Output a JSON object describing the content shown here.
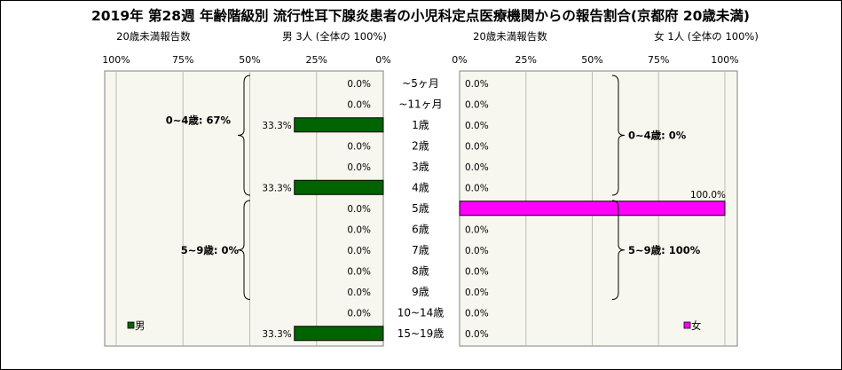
{
  "chart_data": [
    {
      "type": "bar",
      "title": "2019年 第28週 年齢階級別 流行性耳下腺炎患者の小児科定点医療機関からの報告割合(京都府 20歳未満)",
      "panel": "left",
      "orientation": "horizontal",
      "direction": "right-to-left",
      "header_left": "20歳未満報告数",
      "header_right": "男 3人 (全体の 100%)",
      "categories": [
        "~5ヶ月",
        "~11ヶ月",
        "1歳",
        "2歳",
        "3歳",
        "4歳",
        "5歳",
        "6歳",
        "7歳",
        "8歳",
        "9歳",
        "10~14歳",
        "15~19歳"
      ],
      "series": [
        {
          "name": "男",
          "color": "#006400",
          "values": [
            0.0,
            0.0,
            33.3,
            0.0,
            0.0,
            33.3,
            0.0,
            0.0,
            0.0,
            0.0,
            0.0,
            0.0,
            33.3
          ]
        }
      ],
      "value_labels": [
        "0.0%",
        "0.0%",
        "33.3%",
        "0.0%",
        "0.0%",
        "33.3%",
        "0.0%",
        "0.0%",
        "0.0%",
        "0.0%",
        "0.0%",
        "0.0%",
        "33.3%"
      ],
      "xlim": [
        0,
        100
      ],
      "xticks": [
        "100%",
        "75%",
        "50%",
        "25%",
        "0%"
      ],
      "group_labels": [
        "0~4歳: 67%",
        "5~9歳: 0%"
      ],
      "legend": "男",
      "legend_position": "bottom-left",
      "grid": true
    },
    {
      "type": "bar",
      "panel": "right",
      "orientation": "horizontal",
      "direction": "left-to-right",
      "header_left": "20歳未満報告数",
      "header_right": "女 1人 (全体の 100%)",
      "categories": [
        "~5ヶ月",
        "~11ヶ月",
        "1歳",
        "2歳",
        "3歳",
        "4歳",
        "5歳",
        "6歳",
        "7歳",
        "8歳",
        "9歳",
        "10~14歳",
        "15~19歳"
      ],
      "series": [
        {
          "name": "女",
          "color": "#ff00ff",
          "values": [
            0.0,
            0.0,
            0.0,
            0.0,
            0.0,
            0.0,
            100.0,
            0.0,
            0.0,
            0.0,
            0.0,
            0.0,
            0.0
          ]
        }
      ],
      "value_labels": [
        "0.0%",
        "0.0%",
        "0.0%",
        "0.0%",
        "0.0%",
        "0.0%",
        "100.0%",
        "0.0%",
        "0.0%",
        "0.0%",
        "0.0%",
        "0.0%",
        "0.0%"
      ],
      "xlim": [
        0,
        100
      ],
      "xticks": [
        "0%",
        "25%",
        "50%",
        "75%",
        "100%"
      ],
      "group_labels": [
        "0~4歳: 0%",
        "5~9歳: 100%"
      ],
      "legend": "女",
      "legend_position": "bottom-right",
      "grid": true
    }
  ]
}
